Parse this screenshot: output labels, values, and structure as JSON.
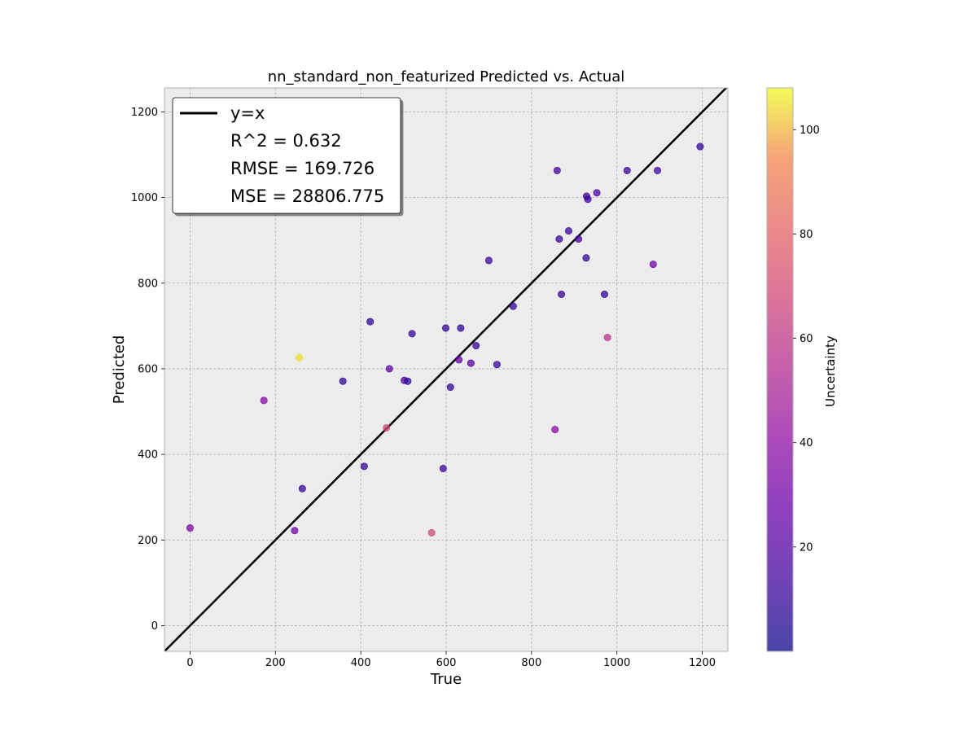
{
  "chart_data": {
    "type": "scatter",
    "title": "nn_standard_non_featurized Predicted vs. Actual",
    "xlabel": "True",
    "ylabel": "Predicted",
    "xlim": [
      -60,
      1260
    ],
    "ylim": [
      -60,
      1256
    ],
    "xticks": [
      0,
      200,
      400,
      600,
      800,
      1000,
      1200
    ],
    "yticks": [
      0,
      200,
      400,
      600,
      800,
      1000,
      1200
    ],
    "grid": true,
    "legend_position": "top-left",
    "legend": [
      {
        "label": "y=x",
        "line": true
      },
      {
        "label": "R^2 = 0.632",
        "line": false
      },
      {
        "label": "RMSE = 169.726",
        "line": false
      },
      {
        "label": "MSE = 28806.775",
        "line": false
      }
    ],
    "reference_line": {
      "name": "y=x",
      "color": "#000000"
    },
    "colorbar": {
      "label": "Uncertainty",
      "min": 0,
      "max": 108,
      "ticks": [
        20,
        40,
        60,
        80,
        100
      ],
      "colormap": "plasma"
    },
    "points": [
      {
        "x": 0,
        "y": 228,
        "u": 33
      },
      {
        "x": 173,
        "y": 526,
        "u": 38
      },
      {
        "x": 245,
        "y": 222,
        "u": 30
      },
      {
        "x": 256,
        "y": 626,
        "u": 105
      },
      {
        "x": 263,
        "y": 320,
        "u": 10
      },
      {
        "x": 358,
        "y": 571,
        "u": 9
      },
      {
        "x": 408,
        "y": 372,
        "u": 10
      },
      {
        "x": 422,
        "y": 710,
        "u": 10
      },
      {
        "x": 460,
        "y": 462,
        "u": 68
      },
      {
        "x": 467,
        "y": 600,
        "u": 22
      },
      {
        "x": 502,
        "y": 573,
        "u": 16
      },
      {
        "x": 510,
        "y": 571,
        "u": 9
      },
      {
        "x": 520,
        "y": 682,
        "u": 11
      },
      {
        "x": 566,
        "y": 217,
        "u": 68
      },
      {
        "x": 593,
        "y": 367,
        "u": 12
      },
      {
        "x": 599,
        "y": 695,
        "u": 10
      },
      {
        "x": 610,
        "y": 557,
        "u": 10
      },
      {
        "x": 630,
        "y": 621,
        "u": 26
      },
      {
        "x": 634,
        "y": 695,
        "u": 9
      },
      {
        "x": 658,
        "y": 613,
        "u": 21
      },
      {
        "x": 670,
        "y": 654,
        "u": 10
      },
      {
        "x": 700,
        "y": 853,
        "u": 10
      },
      {
        "x": 719,
        "y": 610,
        "u": 10
      },
      {
        "x": 757,
        "y": 746,
        "u": 9
      },
      {
        "x": 855,
        "y": 458,
        "u": 38
      },
      {
        "x": 860,
        "y": 1063,
        "u": 13
      },
      {
        "x": 865,
        "y": 903,
        "u": 12
      },
      {
        "x": 870,
        "y": 774,
        "u": 10
      },
      {
        "x": 887,
        "y": 922,
        "u": 11
      },
      {
        "x": 910,
        "y": 903,
        "u": 13
      },
      {
        "x": 928,
        "y": 859,
        "u": 9
      },
      {
        "x": 929,
        "y": 1003,
        "u": 10
      },
      {
        "x": 932,
        "y": 996,
        "u": 12
      },
      {
        "x": 953,
        "y": 1011,
        "u": 18
      },
      {
        "x": 971,
        "y": 774,
        "u": 9
      },
      {
        "x": 978,
        "y": 673,
        "u": 58
      },
      {
        "x": 1024,
        "y": 1063,
        "u": 11
      },
      {
        "x": 1085,
        "y": 844,
        "u": 30
      },
      {
        "x": 1095,
        "y": 1063,
        "u": 12
      },
      {
        "x": 1195,
        "y": 1119,
        "u": 9
      }
    ]
  }
}
